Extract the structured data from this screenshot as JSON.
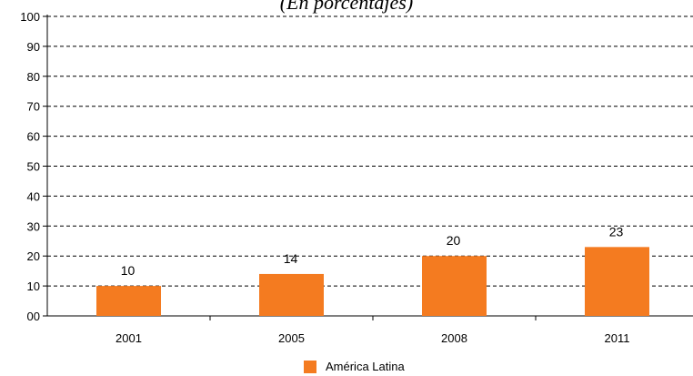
{
  "subtitle": "(En porcentajes)",
  "colors": {
    "bar": "#F47B20",
    "grid": "#000000"
  },
  "chart_data": {
    "type": "bar",
    "categories": [
      "2001",
      "2005",
      "2008",
      "2011"
    ],
    "series": [
      {
        "name": "América Latina",
        "values": [
          10,
          14,
          20,
          23
        ]
      }
    ],
    "data_labels": [
      "10",
      "14",
      "20",
      "23"
    ],
    "ylim": [
      0,
      100
    ],
    "yticks": [
      "00",
      "10",
      "20",
      "30",
      "40",
      "50",
      "60",
      "70",
      "80",
      "90",
      "100"
    ],
    "grid": "dashed horizontal",
    "legend_position": "bottom"
  }
}
